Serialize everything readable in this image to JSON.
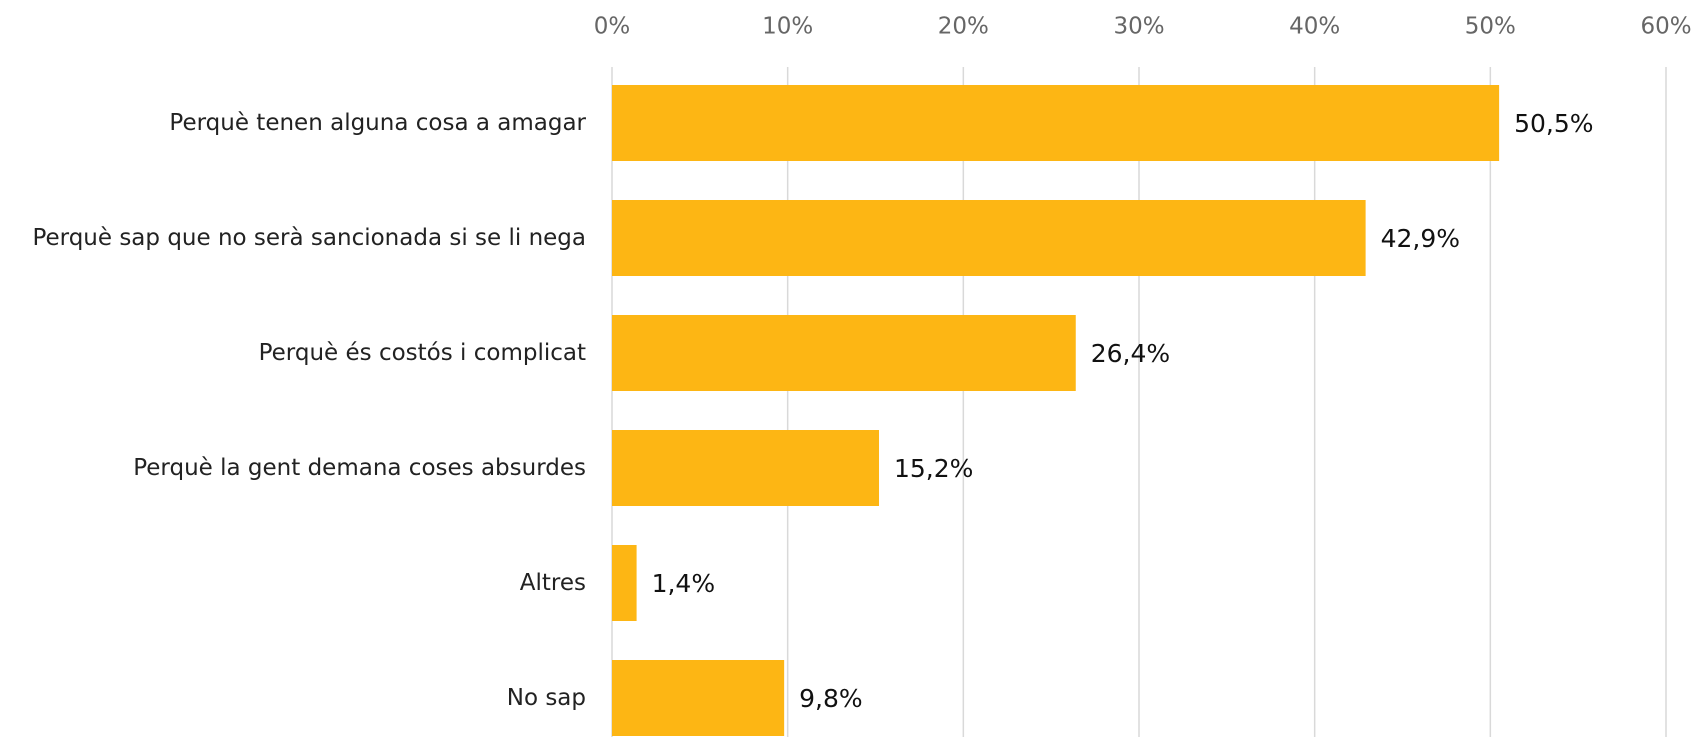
{
  "chart_data": {
    "type": "bar",
    "orientation": "horizontal",
    "categories": [
      "Perquè tenen alguna cosa a amagar",
      "Perquè sap que  no serà sancionada si se li nega",
      "Perquè és costós i complicat",
      "Perquè la gent demana coses absurdes",
      "Altres",
      "No sap"
    ],
    "values": [
      50.5,
      42.9,
      26.4,
      15.2,
      1.4,
      9.8
    ],
    "value_labels": [
      "50,5%",
      "42,9%",
      "26,4%",
      "15,2%",
      "1,4%",
      "9,8%"
    ],
    "color": "#FDB614",
    "xlim": [
      0,
      60
    ],
    "xticks": [
      {
        "value": 0,
        "label": "0%"
      },
      {
        "value": 10,
        "label": "10%"
      },
      {
        "value": 20,
        "label": "20%"
      },
      {
        "value": 30,
        "label": "30%"
      },
      {
        "value": 40,
        "label": "40%"
      },
      {
        "value": 50,
        "label": "50%"
      },
      {
        "value": 60,
        "label": "60%"
      }
    ],
    "grid": true
  }
}
